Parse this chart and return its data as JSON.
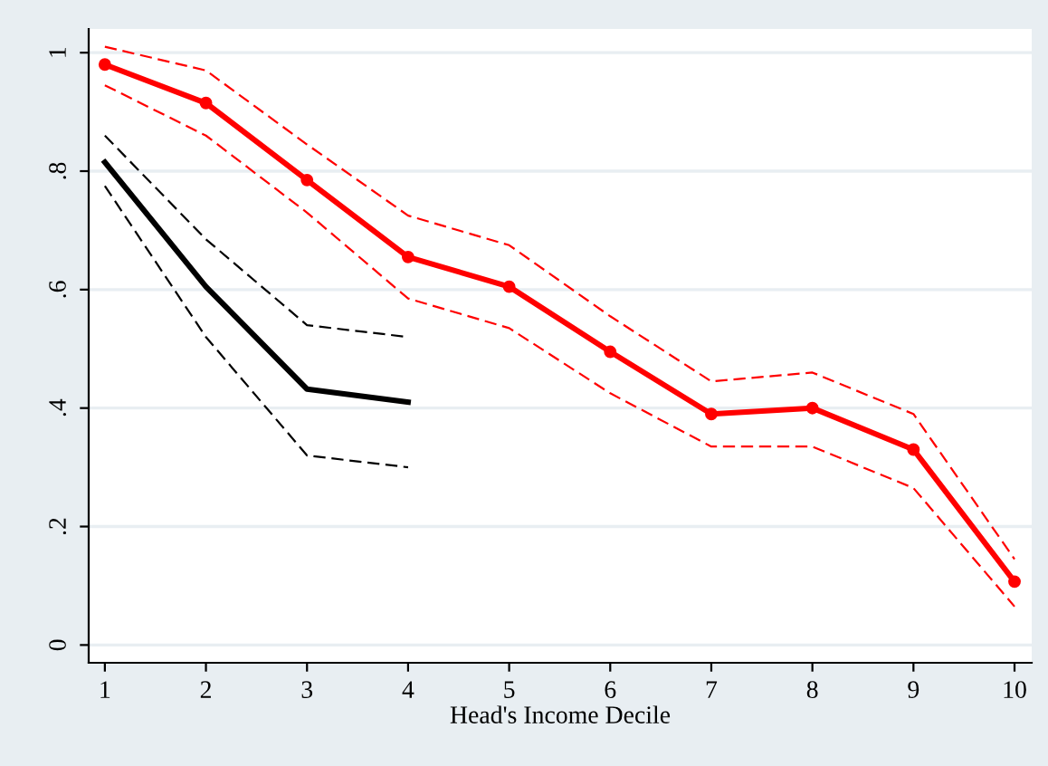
{
  "chart_data": {
    "type": "line",
    "xlabel": "Head's Income Decile",
    "x": [
      1,
      2,
      3,
      4,
      5,
      6,
      7,
      8,
      9,
      10
    ],
    "xlim": [
      0.84,
      10.17
    ],
    "xticks": [
      1,
      2,
      3,
      4,
      5,
      6,
      7,
      8,
      9,
      10
    ],
    "ylim": [
      -0.03,
      1.04
    ],
    "yticks": [
      {
        "value": 0,
        "label": "0"
      },
      {
        "value": 0.2,
        "label": ".2"
      },
      {
        "value": 0.4,
        "label": ".4"
      },
      {
        "value": 0.6,
        "label": ".6"
      },
      {
        "value": 0.8,
        "label": ".8"
      },
      {
        "value": 1,
        "label": "1"
      }
    ],
    "grid": "y",
    "series": [
      {
        "color": "#ff0000",
        "marker": "circle",
        "line_style": "solid",
        "values": [
          0.98,
          0.915,
          0.785,
          0.655,
          0.605,
          0.495,
          0.39,
          0.4,
          0.33,
          0.107
        ]
      },
      {
        "color": "#ff0000",
        "marker": "none",
        "line_style": "dashed",
        "values": [
          1.01,
          0.97,
          0.845,
          0.725,
          0.675,
          0.555,
          0.445,
          0.46,
          0.39,
          0.145
        ]
      },
      {
        "color": "#ff0000",
        "marker": "none",
        "line_style": "dashed",
        "values": [
          0.945,
          0.86,
          0.73,
          0.585,
          0.535,
          0.425,
          0.335,
          0.335,
          0.265,
          0.065
        ]
      },
      {
        "color": "#000000",
        "marker": "none",
        "line_style": "solid",
        "values": [
          0.815,
          0.605,
          0.432,
          0.41,
          null,
          null,
          null,
          null,
          null,
          null
        ]
      },
      {
        "color": "#000000",
        "marker": "none",
        "line_style": "dashed",
        "values": [
          0.86,
          0.685,
          0.54,
          0.52,
          null,
          null,
          null,
          null,
          null,
          null
        ]
      },
      {
        "color": "#000000",
        "marker": "none",
        "line_style": "dashed",
        "values": [
          0.775,
          0.52,
          0.32,
          0.3,
          null,
          null,
          null,
          null,
          null,
          null
        ]
      }
    ]
  }
}
